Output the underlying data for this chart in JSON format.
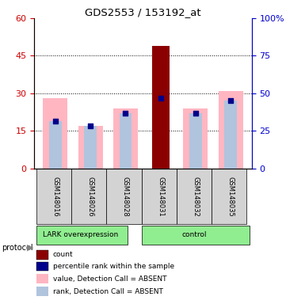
{
  "title": "GDS2553 / 153192_at",
  "samples": [
    "GSM148016",
    "GSM148026",
    "GSM148028",
    "GSM148031",
    "GSM148032",
    "GSM148035"
  ],
  "ylim_left": [
    0,
    60
  ],
  "ylim_right": [
    0,
    100
  ],
  "yticks_left": [
    0,
    15,
    30,
    45,
    60
  ],
  "yticks_right": [
    0,
    25,
    50,
    75,
    100
  ],
  "count_values": [
    0,
    0,
    0,
    49,
    0,
    0
  ],
  "pink_bar_heights": [
    28,
    17,
    24,
    0,
    24,
    31
  ],
  "blue_bar_heights": [
    19,
    17,
    22,
    28,
    22,
    27
  ],
  "rank_square_indices": [
    0,
    1,
    2,
    4,
    5
  ],
  "count_rank_index": 3,
  "count_rank_value": 28,
  "colors": {
    "count": "#8B0000",
    "rank": "#00008B",
    "pink_bar": "#FFB6C1",
    "blue_bar": "#B0C4DE",
    "group_bg": "#90EE90",
    "axis_left_color": "#CC0000",
    "axis_right_color": "#0000CC",
    "sample_bg": "#D3D3D3"
  },
  "legend": [
    {
      "label": "count",
      "color": "#8B0000"
    },
    {
      "label": "percentile rank within the sample",
      "color": "#00008B"
    },
    {
      "label": "value, Detection Call = ABSENT",
      "color": "#FFB6C1"
    },
    {
      "label": "rank, Detection Call = ABSENT",
      "color": "#B0C4DE"
    }
  ]
}
